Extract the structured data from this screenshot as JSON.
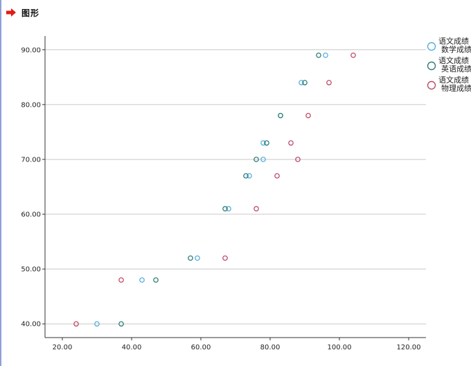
{
  "header": {
    "title": "图形",
    "icon": "red-arrow-icon"
  },
  "chart_data": {
    "type": "scatter",
    "title": "",
    "xlabel": "",
    "ylabel": "",
    "xlim": [
      15,
      125
    ],
    "ylim": [
      37.5,
      92.5
    ],
    "x_ticks": [
      "20.00",
      "40.00",
      "60.00",
      "80.00",
      "100.00",
      "120.00"
    ],
    "y_ticks": [
      "40.00",
      "50.00",
      "60.00",
      "70.00",
      "80.00",
      "90.00"
    ],
    "grid": "horizontal",
    "legend_position": "right",
    "series": [
      {
        "name_lines": [
          "语文成绩",
          "数学成绩"
        ],
        "color": "#55aee0",
        "points": [
          [
            30,
            40
          ],
          [
            43,
            48
          ],
          [
            59,
            52
          ],
          [
            68,
            61
          ],
          [
            74,
            67
          ],
          [
            78,
            70
          ],
          [
            78,
            73
          ],
          [
            83,
            78
          ],
          [
            89,
            84
          ],
          [
            96,
            89
          ]
        ]
      },
      {
        "name_lines": [
          "语文成绩",
          "英语成绩"
        ],
        "color": "#2f7e74",
        "points": [
          [
            37,
            40
          ],
          [
            47,
            48
          ],
          [
            57,
            52
          ],
          [
            67,
            61
          ],
          [
            73,
            67
          ],
          [
            76,
            70
          ],
          [
            79,
            73
          ],
          [
            83,
            78
          ],
          [
            90,
            84
          ],
          [
            94,
            89
          ]
        ]
      },
      {
        "name_lines": [
          "语文成绩",
          "物理成绩"
        ],
        "color": "#c04a66",
        "points": [
          [
            24,
            40
          ],
          [
            37,
            48
          ],
          [
            67,
            52
          ],
          [
            76,
            61
          ],
          [
            82,
            67
          ],
          [
            88,
            70
          ],
          [
            86,
            73
          ],
          [
            91,
            78
          ],
          [
            97,
            84
          ],
          [
            104,
            89
          ]
        ]
      }
    ]
  }
}
